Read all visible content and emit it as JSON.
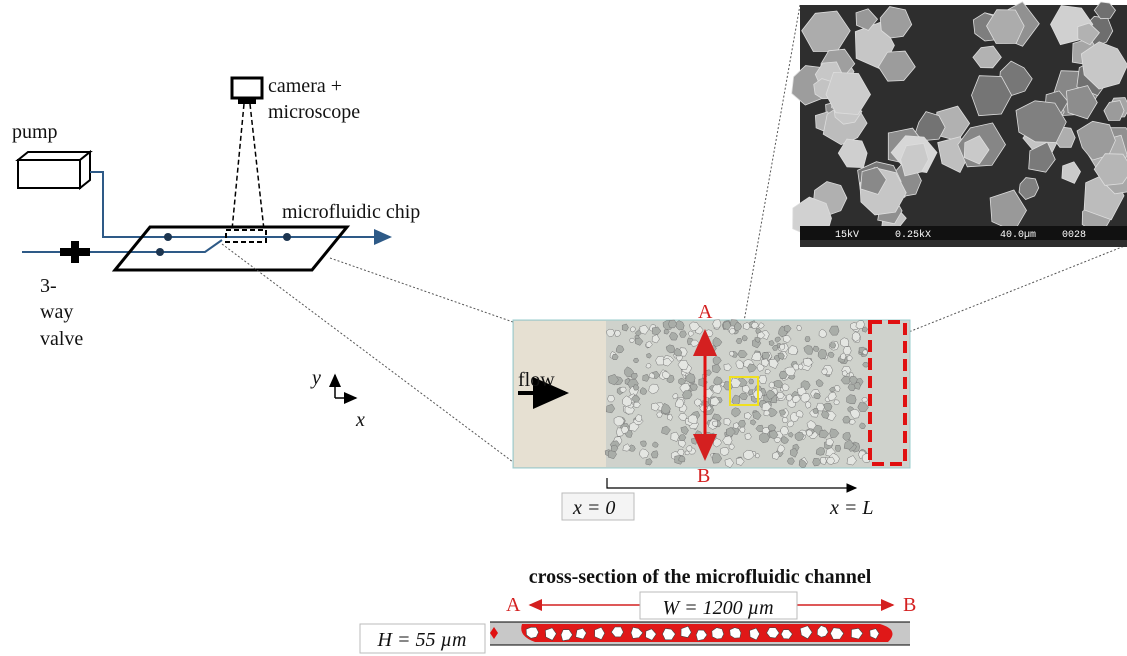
{
  "setup": {
    "pump": "pump",
    "camera": [
      "camera +",
      "microscope"
    ],
    "chip": "microfluidic chip",
    "valve": [
      "3-",
      "way",
      "valve"
    ]
  },
  "axes": {
    "y": "y",
    "x": "x"
  },
  "micrograph": {
    "flow": "flow",
    "top": "A",
    "bottom": "B",
    "x_start": "x = 0",
    "x_end": "x = L"
  },
  "sem": {
    "labels": [
      "15kV",
      "0.25kX",
      "40.0µm",
      "0028"
    ]
  },
  "cross_section": {
    "title": "cross-section of the microfluidic channel",
    "left": "A",
    "width": "W = 1200 µm",
    "right": "B",
    "height": "H = 55 µm"
  }
}
